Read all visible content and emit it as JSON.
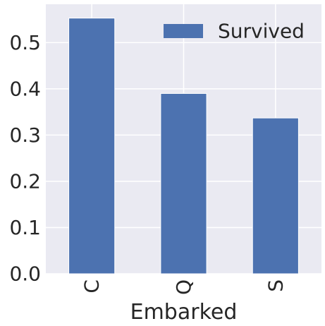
{
  "chart_data": {
    "type": "bar",
    "categories": [
      "C",
      "Q",
      "S"
    ],
    "series": [
      {
        "name": "Survived",
        "values": [
          0.553,
          0.39,
          0.337
        ],
        "color": "#4c72b0"
      }
    ],
    "title": "",
    "xlabel": "Embarked",
    "ylabel": "",
    "ylim": [
      0,
      0.583
    ],
    "yticks": [
      0.0,
      0.1,
      0.2,
      0.3,
      0.4,
      0.5
    ],
    "ytick_labels": [
      "0.0",
      "0.1",
      "0.2",
      "0.3",
      "0.4",
      "0.5"
    ],
    "grid": true,
    "legend_position": "upper-right",
    "background_color": "#eaeaf2",
    "grid_color": "#ffffff"
  }
}
